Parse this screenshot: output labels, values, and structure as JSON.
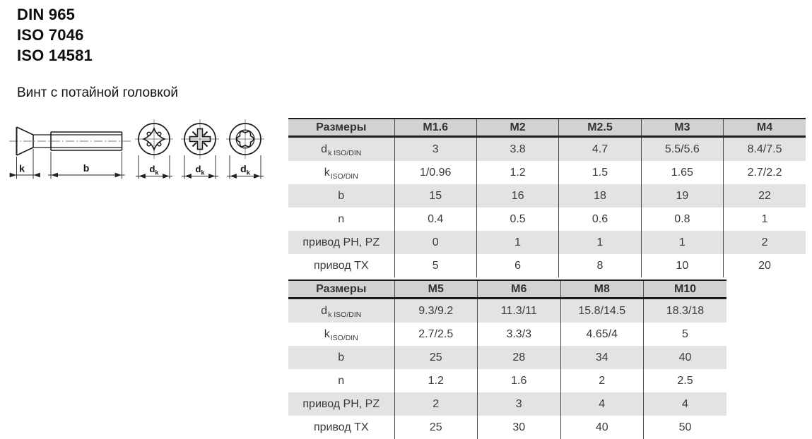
{
  "header": {
    "standards": [
      "DIN 965",
      "ISO 7046",
      "ISO 14581"
    ],
    "subtitle": "Винт с потайной головкой"
  },
  "drawing": {
    "views": [
      "side-view",
      "phillips-recess",
      "pozidriv-recess",
      "torx-recess"
    ],
    "labels": {
      "k": "k",
      "b": "b",
      "dk_main": "d",
      "dk_sub": "k"
    }
  },
  "tables": [
    {
      "header": [
        "Размеры",
        "M1.6",
        "M2",
        "M2.5",
        "M3",
        "M4"
      ],
      "rows": [
        {
          "label_main": "d",
          "label_sub": "k ISO/DIN",
          "values": [
            "3",
            "3.8",
            "4.7",
            "5.5/5.6",
            "8.4/7.5"
          ]
        },
        {
          "label_main": "k",
          "label_sub": "ISO/DIN",
          "values": [
            "1/0.96",
            "1.2",
            "1.5",
            "1.65",
            "2.7/2.2"
          ]
        },
        {
          "label_main": "b",
          "label_sub": "",
          "values": [
            "15",
            "16",
            "18",
            "19",
            "22"
          ]
        },
        {
          "label_main": "n",
          "label_sub": "",
          "values": [
            "0.4",
            "0.5",
            "0.6",
            "0.8",
            "1"
          ]
        },
        {
          "label_main": "привод PH, PZ",
          "label_sub": "",
          "values": [
            "0",
            "1",
            "1",
            "1",
            "2"
          ]
        },
        {
          "label_main": "привод TX",
          "label_sub": "",
          "values": [
            "5",
            "6",
            "8",
            "10",
            "20"
          ]
        }
      ]
    },
    {
      "header": [
        "Размеры",
        "M5",
        "M6",
        "M8",
        "M10"
      ],
      "rows": [
        {
          "label_main": "d",
          "label_sub": "k ISO/DIN",
          "values": [
            "9.3/9.2",
            "11.3/11",
            "15.8/14.5",
            "18.3/18"
          ]
        },
        {
          "label_main": "k",
          "label_sub": "ISO/DIN",
          "values": [
            "2.7/2.5",
            "3.3/3",
            "4.65/4",
            "5"
          ]
        },
        {
          "label_main": "b",
          "label_sub": "",
          "values": [
            "25",
            "28",
            "34",
            "40"
          ]
        },
        {
          "label_main": "n",
          "label_sub": "",
          "values": [
            "1.2",
            "1.6",
            "2",
            "2.5"
          ]
        },
        {
          "label_main": "привод PH, PZ",
          "label_sub": "",
          "values": [
            "2",
            "3",
            "4",
            "4"
          ]
        },
        {
          "label_main": "привод TX",
          "label_sub": "",
          "values": [
            "25",
            "30",
            "40",
            "50"
          ]
        }
      ]
    }
  ],
  "colors": {
    "table_header_bg": "#d2d2d2",
    "table_stripe_bg": "#e3e3e3",
    "table_row_bg": "#ffffff",
    "table_border": "#1c1c1c",
    "text": "#333333",
    "line": "#1d1d1d"
  }
}
